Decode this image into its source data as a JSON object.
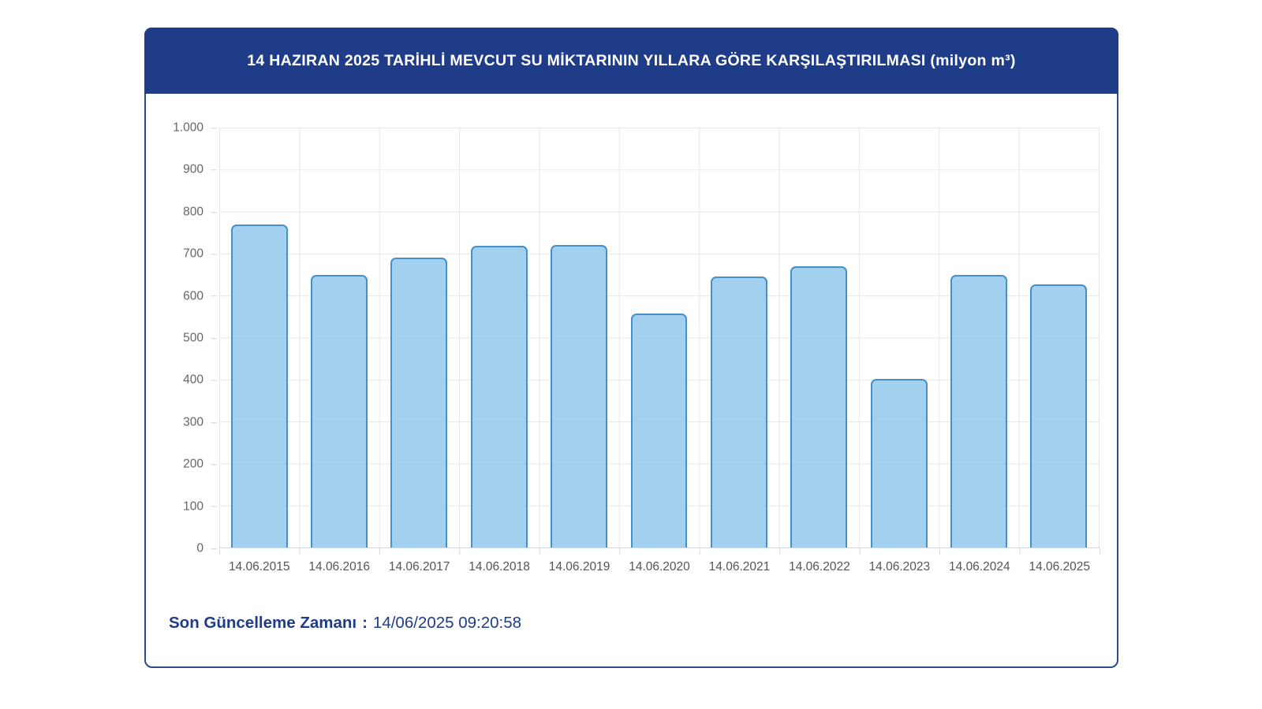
{
  "header": {
    "title": "14 HAZIRAN 2025 TARİHLİ MEVCUT SU MİKTARININ YILLARA GÖRE KARŞILAŞTIRILMASI (milyon m³)"
  },
  "footer": {
    "label": "Son Güncelleme Zamanı",
    "separator": ":",
    "value": "14/06/2025 09:20:58"
  },
  "colors": {
    "header_bg": "#1e3c87",
    "card_border": "#2c4a90",
    "bar_fill": "rgba(146,200,235,0.85)",
    "bar_border": "#4590c7",
    "grid": "#e6e6e6",
    "axis_line": "#d6d6d6",
    "ytick_text": "#666666",
    "xtick_text": "#555555",
    "footer_text": "#1e3c87"
  },
  "chart_data": {
    "type": "bar",
    "title": "14 HAZIRAN 2025 TARİHLİ MEVCUT SU MİKTARININ YILLARA GÖRE KARŞILAŞTIRILMASI",
    "unit": "milyon m³",
    "categories": [
      "14.06.2015",
      "14.06.2016",
      "14.06.2017",
      "14.06.2018",
      "14.06.2019",
      "14.06.2020",
      "14.06.2021",
      "14.06.2022",
      "14.06.2023",
      "14.06.2024",
      "14.06.2025"
    ],
    "values": [
      769,
      650,
      691,
      719,
      720,
      558,
      645,
      670,
      402,
      650,
      626
    ],
    "xlabel": "",
    "ylabel": "",
    "ylim": [
      0,
      1000
    ],
    "ytick_step": 100,
    "ytick_labels": [
      "1.000",
      "900",
      "800",
      "700",
      "600",
      "500",
      "400",
      "300",
      "200",
      "100",
      "0"
    ],
    "grid": true,
    "legend": false
  }
}
